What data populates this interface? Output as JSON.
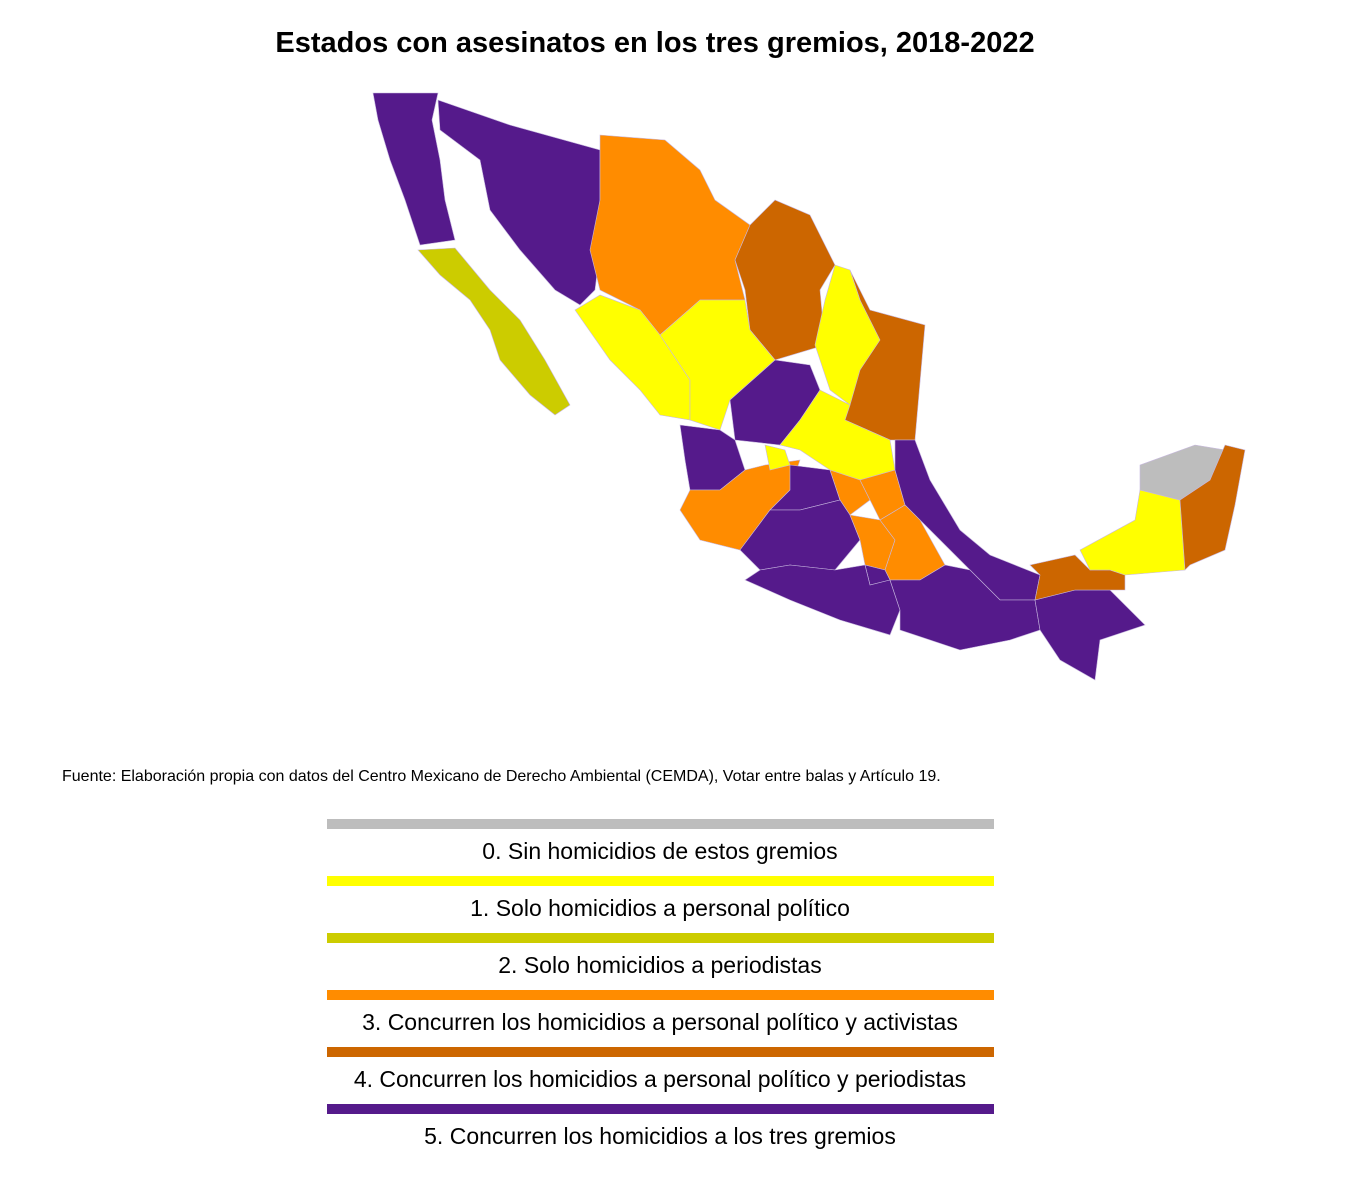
{
  "title": "Estados con asesinatos en los tres gremios, 2018-2022",
  "source": "Fuente: Elaboración propia con datos del Centro Mexicano de Derecho Ambiental (CEMDA), Votar entre balas y Artículo 19.",
  "legend": [
    {
      "label": "0. Sin homicidios de estos gremios",
      "color": "#bdbdbd"
    },
    {
      "label": "1. Solo homicidios a personal político",
      "color": "#ffff00"
    },
    {
      "label": "2. Solo homicidios a periodistas",
      "color": "#cccc00"
    },
    {
      "label": "3. Concurren los homicidios a personal político y activistas",
      "color": "#ff8c00"
    },
    {
      "label": "4. Concurren los homicidios a personal político y periodistas",
      "color": "#cc6600"
    },
    {
      "label": "5. Concurren los homicidios a los tres gremios",
      "color": "#551a8b"
    }
  ]
}
